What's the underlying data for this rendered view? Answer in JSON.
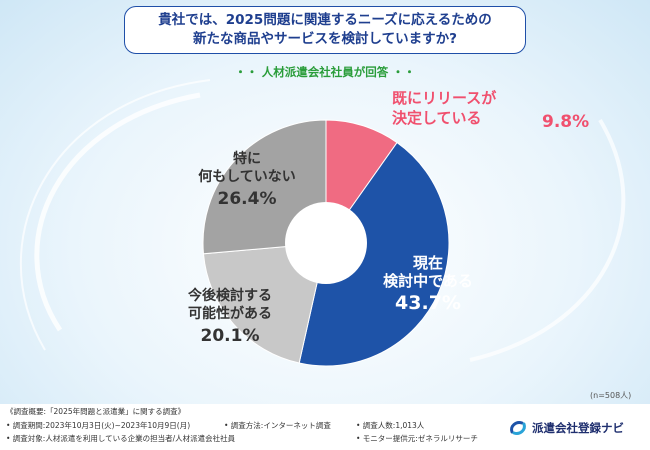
{
  "title_line1": "貴社では、2025問題に関連するニーズに応えるための",
  "title_line2": "新たな商品やサービスを検討していますか?",
  "subtitle": "・・ 人材派遣会社社員が回答 ・・",
  "chart_data": {
    "type": "pie",
    "donut": true,
    "title": "貴社では、2025問題に関連するニーズに応えるための新たな商品やサービスを検討していますか?",
    "slices": [
      {
        "label_line1": "既にリリースが",
        "label_line2": "決定している",
        "value": 9.8,
        "value_text": "9.8%",
        "color": "#f06b82"
      },
      {
        "label_line1": "現在",
        "label_line2": "検討中である",
        "value": 43.7,
        "value_text": "43.7%",
        "color": "#1e53a8"
      },
      {
        "label_line1": "今後検討する",
        "label_line2": "可能性がある",
        "value": 20.1,
        "value_text": "20.1%",
        "color": "#c8c8c8"
      },
      {
        "label_line1": "特に",
        "label_line2": "何もしていない",
        "value": 26.4,
        "value_text": "26.4%",
        "color": "#a3a3a3"
      }
    ],
    "n_note": "(n=508人)"
  },
  "footer": {
    "outline": "《調査概要:「2025年問題と派遣業」に関する調査》",
    "period": "• 調査期間:2023年10月3日(火)~2023年10月9日(月)",
    "method": "• 調査方法:インターネット調査",
    "count": "• 調査人数:1,013人",
    "target": "• 調査対象:人材派遣を利用している企業の担当者/人材派遣会社社員",
    "provider": "• モニター提供元:ゼネラルリサーチ"
  },
  "logo": {
    "text": "派遣会社登録ナビ",
    "icon": "logo-swirl-icon"
  }
}
